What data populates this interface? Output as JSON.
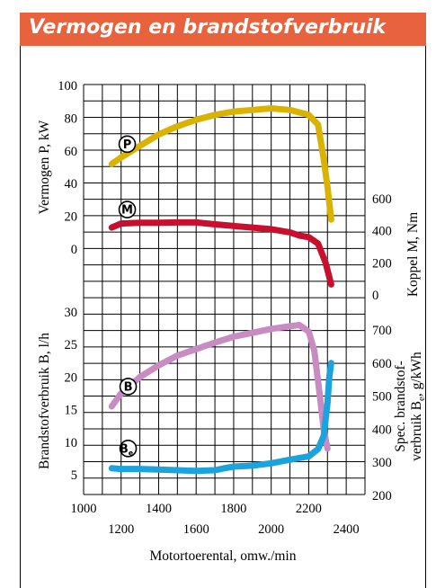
{
  "title": "Vermogen en brandstofverbruik",
  "chart_data": {
    "type": "line",
    "grid": true,
    "xlabel": "Motortoerental, omw./min",
    "xticks_upper": [
      "1000",
      "1400",
      "1800",
      "2200"
    ],
    "xticks_lower": [
      "1200",
      "1600",
      "2000",
      "2400"
    ],
    "xlim": [
      1000,
      2500
    ],
    "axes": {
      "power": {
        "label": "Vermogen P, kW",
        "ticks": [
          "0",
          "20",
          "40",
          "60",
          "80",
          "100"
        ],
        "range": [
          0,
          100
        ]
      },
      "torque": {
        "label": "Koppel M, Nm",
        "ticks": [
          "0",
          "200",
          "400",
          "600"
        ],
        "range": [
          0,
          600
        ]
      },
      "fuel": {
        "label": "Brandstofverbruik B, l/h",
        "ticks": [
          "5",
          "10",
          "15",
          "20",
          "25",
          "30"
        ],
        "range": [
          5,
          30
        ]
      },
      "specific": {
        "label_line1": "Spec. brandstof-",
        "label_line2": "verbruik B",
        "label_subscript": "e",
        "label_suffix": ", g/kWh",
        "ticks": [
          "200",
          "300",
          "400",
          "500",
          "600",
          "700"
        ],
        "range": [
          200,
          700
        ]
      }
    },
    "series": [
      {
        "name": "P",
        "axis": "power",
        "color": "#dab200",
        "points": [
          [
            1150,
            52
          ],
          [
            1200,
            56
          ],
          [
            1300,
            63
          ],
          [
            1400,
            70
          ],
          [
            1500,
            75
          ],
          [
            1600,
            79
          ],
          [
            1700,
            82
          ],
          [
            1800,
            84
          ],
          [
            1900,
            85
          ],
          [
            2000,
            86
          ],
          [
            2100,
            85
          ],
          [
            2200,
            82
          ],
          [
            2250,
            76
          ],
          [
            2280,
            55
          ],
          [
            2300,
            38
          ],
          [
            2320,
            18
          ]
        ]
      },
      {
        "name": "M",
        "axis": "torque",
        "color": "#c8102e",
        "points": [
          [
            1150,
            420
          ],
          [
            1200,
            445
          ],
          [
            1300,
            450
          ],
          [
            1400,
            450
          ],
          [
            1500,
            452
          ],
          [
            1600,
            452
          ],
          [
            1700,
            440
          ],
          [
            1800,
            430
          ],
          [
            1900,
            420
          ],
          [
            2000,
            410
          ],
          [
            2100,
            390
          ],
          [
            2150,
            370
          ],
          [
            2200,
            360
          ],
          [
            2250,
            320
          ],
          [
            2290,
            200
          ],
          [
            2320,
            65
          ]
        ]
      },
      {
        "name": "B",
        "axis": "fuel",
        "color": "#c88cc2",
        "points": [
          [
            1150,
            15.5
          ],
          [
            1200,
            17.5
          ],
          [
            1300,
            20
          ],
          [
            1400,
            21.8
          ],
          [
            1500,
            23.3
          ],
          [
            1600,
            24.3
          ],
          [
            1700,
            25.3
          ],
          [
            1800,
            26.2
          ],
          [
            1900,
            26.8
          ],
          [
            2000,
            27.4
          ],
          [
            2100,
            27.8
          ],
          [
            2150,
            28
          ],
          [
            2200,
            27
          ],
          [
            2230,
            24
          ],
          [
            2260,
            17
          ],
          [
            2280,
            12
          ],
          [
            2300,
            9
          ]
        ]
      },
      {
        "name": "B",
        "name_subscript": "e",
        "axis": "specific",
        "color": "#1aa3dc",
        "points": [
          [
            1150,
            282
          ],
          [
            1200,
            280
          ],
          [
            1300,
            280
          ],
          [
            1400,
            278
          ],
          [
            1500,
            276
          ],
          [
            1600,
            274
          ],
          [
            1700,
            276
          ],
          [
            1750,
            282
          ],
          [
            1800,
            287
          ],
          [
            1900,
            290
          ],
          [
            2000,
            297
          ],
          [
            2100,
            308
          ],
          [
            2200,
            318
          ],
          [
            2250,
            340
          ],
          [
            2280,
            380
          ],
          [
            2300,
            480
          ],
          [
            2310,
            560
          ],
          [
            2320,
            600
          ]
        ]
      }
    ]
  }
}
